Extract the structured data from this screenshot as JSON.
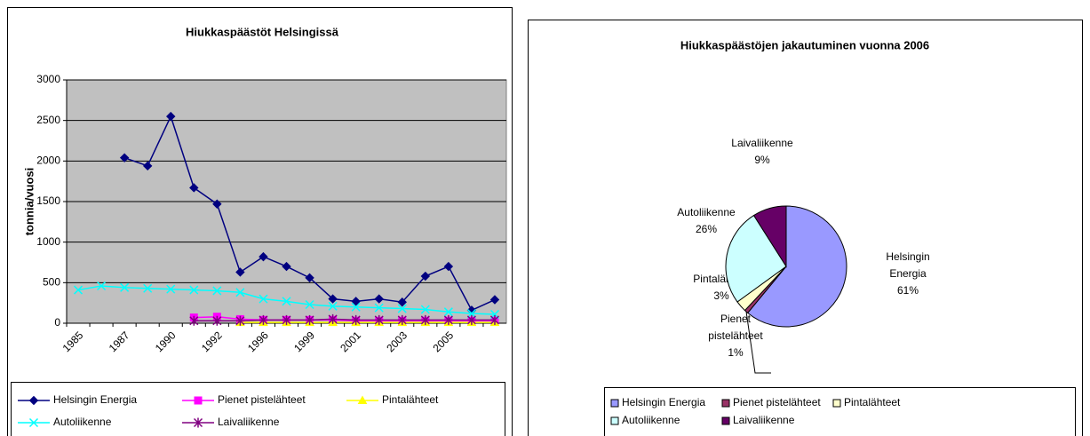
{
  "chart_data": [
    {
      "type": "line",
      "title": "Hiukkaspäästöt Helsingissä",
      "ylabel": "tonnia/vuosi",
      "categories": [
        "1985",
        null,
        "1987",
        null,
        "1990",
        null,
        "1992",
        null,
        "1996",
        null,
        "1999",
        null,
        "2001",
        null,
        "2003",
        null,
        "2005",
        null,
        null
      ],
      "ylim": [
        0,
        3000
      ],
      "yticks": [
        0,
        500,
        1000,
        1500,
        2000,
        2500,
        3000
      ],
      "grid": true,
      "legend": "bottom",
      "series": [
        {
          "name": "Helsingin Energia",
          "color": "#000080",
          "marker": "diamond",
          "values": [
            null,
            null,
            2040,
            1940,
            2550,
            1670,
            1470,
            630,
            820,
            700,
            560,
            300,
            270,
            300,
            260,
            580,
            700,
            160,
            290
          ]
        },
        {
          "name": "Pienet pistelähteet",
          "color": "#ff00ff",
          "marker": "square",
          "values": [
            null,
            null,
            null,
            null,
            null,
            70,
            80,
            50,
            40,
            40,
            40,
            40,
            30,
            30,
            30,
            30,
            30,
            30,
            30
          ]
        },
        {
          "name": "Pintalähteet",
          "color": "#ffff00",
          "marker": "triangle",
          "values": [
            null,
            null,
            null,
            null,
            null,
            null,
            null,
            10,
            10,
            10,
            10,
            10,
            10,
            10,
            10,
            10,
            10,
            10,
            10
          ]
        },
        {
          "name": "Autoliikenne",
          "color": "#00ffff",
          "marker": "x",
          "values": [
            410,
            460,
            440,
            430,
            420,
            410,
            400,
            380,
            300,
            270,
            230,
            210,
            200,
            190,
            180,
            170,
            140,
            120,
            110
          ]
        },
        {
          "name": "Laivaliikenne",
          "color": "#800080",
          "marker": "star",
          "values": [
            null,
            null,
            null,
            null,
            null,
            30,
            30,
            30,
            40,
            40,
            40,
            50,
            40,
            40,
            40,
            40,
            40,
            40,
            40
          ]
        }
      ]
    },
    {
      "type": "pie",
      "title": "Hiukkaspäästöjen jakautuminen vuonna 2006",
      "legend": "bottom",
      "categories": [
        "Helsingin Energia",
        "Pienet pistelähteet",
        "Pintalähteet",
        "Autoliikenne",
        "Laivaliikenne"
      ],
      "values": [
        61,
        1,
        3,
        26,
        9
      ],
      "value_labels": [
        "61%",
        "1%",
        "3%",
        "26%",
        "9%"
      ],
      "colors": [
        "#9999ff",
        "#993366",
        "#ffffcc",
        "#ccffff",
        "#660066"
      ]
    }
  ]
}
